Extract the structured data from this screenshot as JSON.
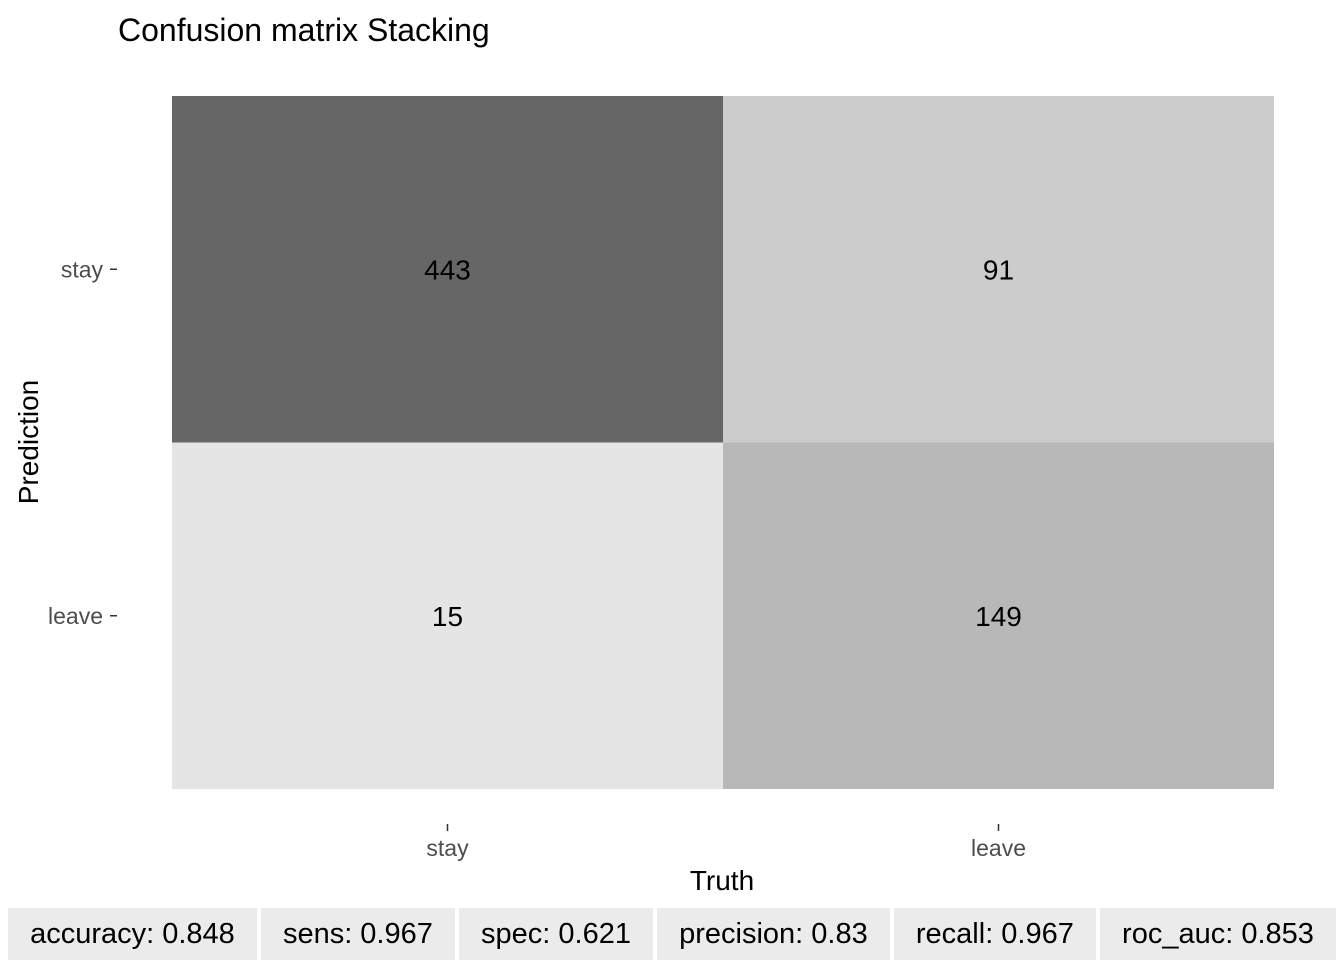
{
  "chart_data": {
    "type": "heatmap",
    "title": "Confusion matrix Stacking",
    "xlabel": "Truth",
    "ylabel": "Prediction",
    "x_categories": [
      "stay",
      "leave"
    ],
    "y_categories": [
      "stay",
      "leave"
    ],
    "cells": [
      {
        "prediction": "stay",
        "truth": "stay",
        "value": 443,
        "fill": "#666666"
      },
      {
        "prediction": "stay",
        "truth": "leave",
        "value": 91,
        "fill": "#cccccc"
      },
      {
        "prediction": "leave",
        "truth": "stay",
        "value": 15,
        "fill": "#e5e5e5"
      },
      {
        "prediction": "leave",
        "truth": "leave",
        "value": 149,
        "fill": "#b8b8b8"
      }
    ],
    "legend": "none",
    "grid": false
  },
  "metrics": [
    {
      "text": "accuracy: 0.848"
    },
    {
      "text": "sens: 0.967"
    },
    {
      "text": "spec: 0.621"
    },
    {
      "text": "precision: 0.83"
    },
    {
      "text": "recall: 0.967"
    },
    {
      "text": "roc_auc: 0.853"
    }
  ]
}
